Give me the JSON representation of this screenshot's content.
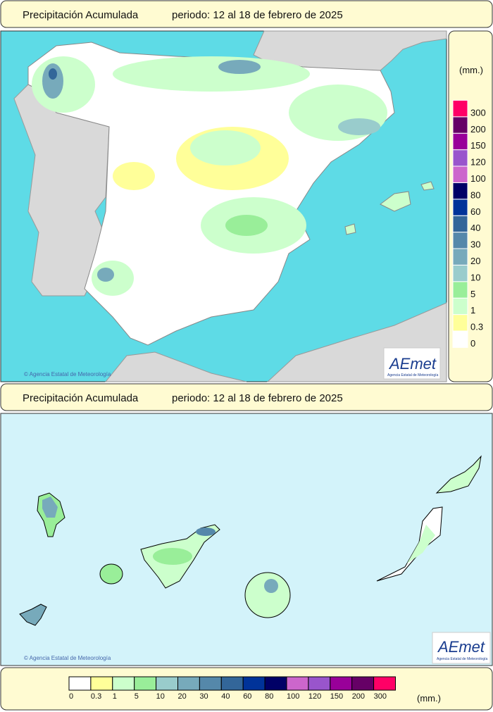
{
  "top_header": {
    "title": "Precipitación Acumulada",
    "period": "periodo: 12 al 18 de febrero de 2025"
  },
  "peninsula_map": {
    "credit": "© Agencia Estatal de Meteorología",
    "logo": "AEmet",
    "logo_subtitle": "Agencia Estatal de Meteorología"
  },
  "legend": {
    "unit": "(mm.)",
    "levels": [
      0,
      0.3,
      1,
      5,
      10,
      20,
      30,
      40,
      60,
      80,
      100,
      120,
      150,
      200,
      300
    ],
    "colors": [
      "#ffffff",
      "#ffff99",
      "#ccffcc",
      "#99ee99",
      "#99cccc",
      "#77aabb",
      "#5588aa",
      "#336699",
      "#003399",
      "#000066",
      "#cc66cc",
      "#9955cc",
      "#990099",
      "#660066",
      "#ff0066"
    ]
  },
  "canary_header": {
    "title": "Precipitación Acumulada",
    "period": "periodo: 12 al 18 de febrero de 2025"
  },
  "canary_map": {
    "credit": "© Agencia Estatal de Meteorología",
    "logo": "AEmet",
    "logo_subtitle": "Agencia Estatal de Meteorología"
  }
}
